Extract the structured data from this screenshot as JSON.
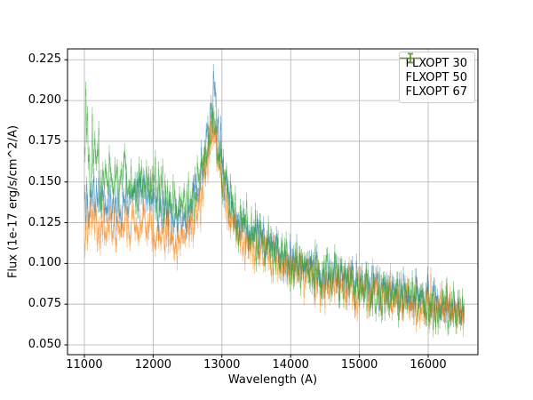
{
  "figure": {
    "background": "#ffffff",
    "plot_background": "#ffffff",
    "grid_color": "#b0b0b0",
    "spine_color": "#000000",
    "legend_border_color": "#cccccc"
  },
  "chart_data": {
    "type": "line",
    "title": "",
    "xlabel": "Wavelength (A)",
    "ylabel": "Flux (1e-17 erg/s/cm^2/A)",
    "grid": true,
    "legend_position": "upper right",
    "xlim": [
      10755,
      16723
    ],
    "ylim": [
      0.044,
      0.2317
    ],
    "x_range_data": [
      11010,
      16520
    ],
    "points_per_series": 470,
    "xticks": [
      {
        "value": 11000,
        "label": "11000"
      },
      {
        "value": 12000,
        "label": "12000"
      },
      {
        "value": 13000,
        "label": "13000"
      },
      {
        "value": 14000,
        "label": "14000"
      },
      {
        "value": 15000,
        "label": "15000"
      },
      {
        "value": 16000,
        "label": "16000"
      }
    ],
    "yticks": [
      {
        "value": 0.05,
        "label": "0.050"
      },
      {
        "value": 0.075,
        "label": "0.075"
      },
      {
        "value": 0.1,
        "label": "0.100"
      },
      {
        "value": 0.125,
        "label": "0.125"
      },
      {
        "value": 0.15,
        "label": "0.150"
      },
      {
        "value": 0.175,
        "label": "0.175"
      },
      {
        "value": 0.2,
        "label": "0.200"
      },
      {
        "value": 0.225,
        "label": "0.225"
      }
    ],
    "series": [
      {
        "name": "FLXOPT 30",
        "color": "#1f77b4",
        "alpha": 0.5,
        "seed": 7,
        "errorbar_halflength": 0.0045,
        "envelope": [
          [
            11000,
            0.136
          ],
          [
            11150,
            0.14
          ],
          [
            11300,
            0.137
          ],
          [
            11450,
            0.134
          ],
          [
            11600,
            0.136
          ],
          [
            11750,
            0.14
          ],
          [
            11900,
            0.142
          ],
          [
            12050,
            0.136
          ],
          [
            12200,
            0.13
          ],
          [
            12350,
            0.126
          ],
          [
            12500,
            0.13
          ],
          [
            12650,
            0.146
          ],
          [
            12780,
            0.172
          ],
          [
            12860,
            0.2
          ],
          [
            12880,
            0.206
          ],
          [
            12920,
            0.19
          ],
          [
            13000,
            0.16
          ],
          [
            13100,
            0.138
          ],
          [
            13250,
            0.126
          ],
          [
            13400,
            0.121
          ],
          [
            13600,
            0.115
          ],
          [
            13800,
            0.109
          ],
          [
            14000,
            0.102
          ],
          [
            14250,
            0.098
          ],
          [
            14500,
            0.094
          ],
          [
            14750,
            0.091
          ],
          [
            15000,
            0.087
          ],
          [
            15250,
            0.084
          ],
          [
            15500,
            0.081
          ],
          [
            15750,
            0.079
          ],
          [
            16000,
            0.077
          ],
          [
            16250,
            0.074
          ],
          [
            16500,
            0.072
          ]
        ],
        "sigma": [
          [
            11000,
            0.0075
          ],
          [
            12500,
            0.006
          ],
          [
            12870,
            0.0085
          ],
          [
            13200,
            0.006
          ],
          [
            16500,
            0.0065
          ]
        ]
      },
      {
        "name": "FLXOPT 50",
        "color": "#ff7f0e",
        "alpha": 0.5,
        "seed": 11,
        "errorbar_halflength": 0.0045,
        "envelope": [
          [
            11000,
            0.124
          ],
          [
            11150,
            0.126
          ],
          [
            11300,
            0.122
          ],
          [
            11450,
            0.119
          ],
          [
            11600,
            0.121
          ],
          [
            11750,
            0.124
          ],
          [
            11900,
            0.125
          ],
          [
            12050,
            0.121
          ],
          [
            12200,
            0.116
          ],
          [
            12350,
            0.111
          ],
          [
            12500,
            0.116
          ],
          [
            12650,
            0.132
          ],
          [
            12780,
            0.158
          ],
          [
            12860,
            0.188
          ],
          [
            12880,
            0.193
          ],
          [
            12920,
            0.178
          ],
          [
            13000,
            0.15
          ],
          [
            13100,
            0.128
          ],
          [
            13250,
            0.117
          ],
          [
            13400,
            0.112
          ],
          [
            13600,
            0.107
          ],
          [
            13800,
            0.102
          ],
          [
            14000,
            0.096
          ],
          [
            14250,
            0.092
          ],
          [
            14500,
            0.089
          ],
          [
            14750,
            0.087
          ],
          [
            15000,
            0.084
          ],
          [
            15250,
            0.082
          ],
          [
            15500,
            0.08
          ],
          [
            15750,
            0.078
          ],
          [
            16000,
            0.076
          ],
          [
            16250,
            0.073
          ],
          [
            16500,
            0.07
          ]
        ],
        "sigma": [
          [
            11000,
            0.008
          ],
          [
            12500,
            0.006
          ],
          [
            12870,
            0.008
          ],
          [
            13200,
            0.006
          ],
          [
            16500,
            0.0065
          ]
        ]
      },
      {
        "name": "FLXOPT 67",
        "color": "#2ca02c",
        "alpha": 0.5,
        "seed": 23,
        "errorbar_halflength": 0.0045,
        "envelope": [
          [
            11000,
            0.172
          ],
          [
            11080,
            0.16
          ],
          [
            11200,
            0.152
          ],
          [
            11350,
            0.149
          ],
          [
            11500,
            0.151
          ],
          [
            11650,
            0.153
          ],
          [
            11800,
            0.15
          ],
          [
            11950,
            0.147
          ],
          [
            12100,
            0.142
          ],
          [
            12250,
            0.136
          ],
          [
            12400,
            0.133
          ],
          [
            12550,
            0.138
          ],
          [
            12700,
            0.152
          ],
          [
            12800,
            0.172
          ],
          [
            12870,
            0.189
          ],
          [
            12920,
            0.178
          ],
          [
            13000,
            0.155
          ],
          [
            13100,
            0.136
          ],
          [
            13250,
            0.126
          ],
          [
            13400,
            0.121
          ],
          [
            13600,
            0.115
          ],
          [
            13800,
            0.11
          ],
          [
            14000,
            0.101
          ],
          [
            14250,
            0.097
          ],
          [
            14500,
            0.093
          ],
          [
            14750,
            0.09
          ],
          [
            15000,
            0.085
          ],
          [
            15250,
            0.082
          ],
          [
            15500,
            0.079
          ],
          [
            15750,
            0.077
          ],
          [
            16000,
            0.074
          ],
          [
            16250,
            0.071
          ],
          [
            16500,
            0.068
          ]
        ],
        "sigma": [
          [
            11000,
            0.015
          ],
          [
            11400,
            0.01
          ],
          [
            12000,
            0.0085
          ],
          [
            12870,
            0.0075
          ],
          [
            14000,
            0.0075
          ],
          [
            16500,
            0.007
          ]
        ]
      }
    ]
  }
}
